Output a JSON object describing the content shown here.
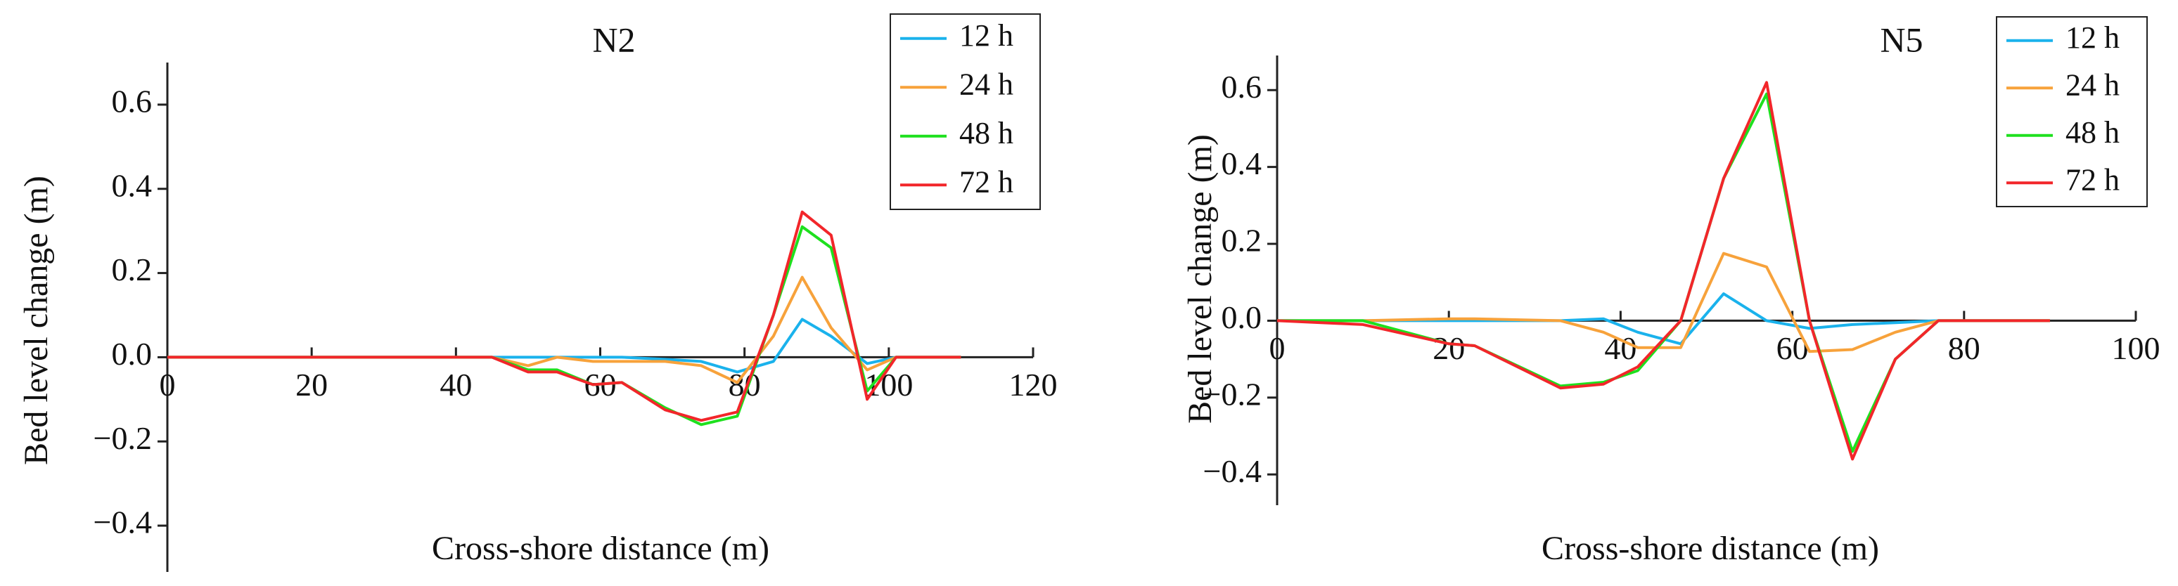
{
  "chart_data": [
    {
      "type": "line",
      "title": "N2",
      "x_label": "Cross-shore distance (m)",
      "y_label": "Bed level change (m)",
      "x": [
        0,
        45,
        50,
        54,
        59,
        63,
        69,
        74,
        79,
        84,
        88,
        92,
        97,
        101,
        105,
        110
      ],
      "xlim": [
        0,
        120
      ],
      "xticks": [
        0,
        20,
        40,
        60,
        80,
        100,
        120
      ],
      "ylim": [
        -0.51,
        0.7
      ],
      "yticks": [
        {
          "value": -0.4,
          "label": "−0.4"
        },
        {
          "value": -0.2,
          "label": "−0.2"
        },
        {
          "value": 0,
          "label": "0.0"
        },
        0.2,
        0.4,
        0.6
      ],
      "legend": "top right",
      "series": [
        {
          "name": "12 h",
          "color": "#1ab2ec",
          "values": [
            0,
            0,
            0,
            0,
            0,
            0,
            -0.005,
            -0.01,
            -0.035,
            -0.01,
            0.09,
            0.05,
            -0.015,
            0,
            0,
            0
          ]
        },
        {
          "name": "24 h",
          "color": "#f7a23b",
          "values": [
            0,
            0,
            -0.02,
            0,
            -0.01,
            -0.01,
            -0.01,
            -0.02,
            -0.06,
            0.05,
            0.19,
            0.07,
            -0.03,
            0,
            0,
            0
          ]
        },
        {
          "name": "48 h",
          "color": "#1ee01e",
          "values": [
            0,
            0,
            -0.03,
            -0.03,
            -0.065,
            -0.06,
            -0.12,
            -0.16,
            -0.14,
            0.1,
            0.31,
            0.26,
            -0.08,
            0,
            0,
            0
          ]
        },
        {
          "name": "72 h",
          "color": "#f2262a",
          "values": [
            0,
            0,
            -0.035,
            -0.035,
            -0.065,
            -0.06,
            -0.125,
            -0.15,
            -0.13,
            0.1,
            0.345,
            0.29,
            -0.1,
            0,
            0,
            0
          ]
        }
      ]
    },
    {
      "type": "line",
      "title": "N5",
      "x_label": "Cross-shore distance (m)",
      "y_label": "Bed level change (m)",
      "x": [
        0,
        10,
        20,
        23,
        33,
        38,
        42,
        47,
        52,
        57,
        62,
        67,
        72,
        77,
        90
      ],
      "xlim": [
        0,
        100
      ],
      "xticks": [
        0,
        20,
        40,
        60,
        80,
        100
      ],
      "ylim": [
        -0.48,
        0.69
      ],
      "yticks": [
        {
          "value": -0.4,
          "label": "−0.4"
        },
        {
          "value": -0.2,
          "label": "−0.2"
        },
        {
          "value": 0,
          "label": "0.0"
        },
        0.2,
        0.4,
        0.6
      ],
      "legend": "top right",
      "series": [
        {
          "name": "12 h",
          "color": "#1ab2ec",
          "values": [
            0,
            0,
            0,
            0,
            0,
            0.005,
            -0.03,
            -0.06,
            0.07,
            0,
            -0.02,
            -0.01,
            -0.005,
            0,
            0
          ]
        },
        {
          "name": "24 h",
          "color": "#f7a23b",
          "values": [
            0,
            0,
            0.005,
            0.005,
            0,
            -0.03,
            -0.07,
            -0.07,
            0.175,
            0.14,
            -0.08,
            -0.075,
            -0.03,
            0,
            0
          ]
        },
        {
          "name": "48 h",
          "color": "#1ee01e",
          "values": [
            0,
            0,
            -0.06,
            -0.065,
            -0.17,
            -0.16,
            -0.13,
            0,
            0.37,
            0.59,
            0,
            -0.34,
            -0.1,
            0,
            0
          ]
        },
        {
          "name": "72 h",
          "color": "#f2262a",
          "values": [
            0,
            -0.01,
            -0.06,
            -0.065,
            -0.175,
            -0.165,
            -0.12,
            0,
            0.37,
            0.62,
            0,
            -0.36,
            -0.1,
            0,
            0
          ]
        }
      ]
    }
  ]
}
